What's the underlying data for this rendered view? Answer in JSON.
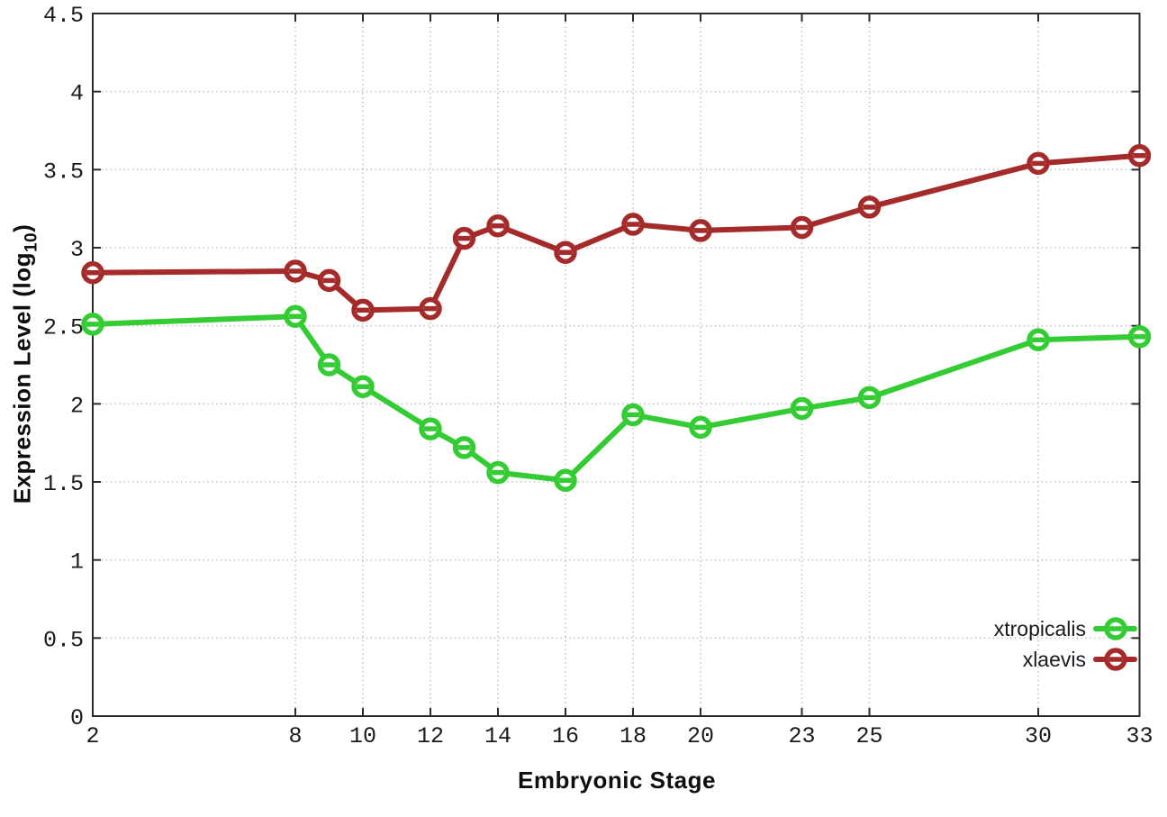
{
  "chart_data": {
    "type": "line",
    "title": "",
    "xlabel": "Embryonic Stage",
    "ylabel_prefix": "Expression Level (log",
    "ylabel_sub": "10",
    "ylabel_suffix": ")",
    "grid": true,
    "legend_position": "bottom-right-inside",
    "xlim": [
      2,
      33
    ],
    "ylim": [
      0,
      4.5
    ],
    "x": [
      2,
      8,
      9,
      10,
      12,
      13,
      14,
      16,
      18,
      20,
      23,
      25,
      30,
      33
    ],
    "x_ticks": [
      {
        "value": 2,
        "label": "2"
      },
      {
        "value": 8,
        "label": "8"
      },
      {
        "value": 10,
        "label": "10"
      },
      {
        "value": 12,
        "label": "12"
      },
      {
        "value": 14,
        "label": "14"
      },
      {
        "value": 16,
        "label": "16"
      },
      {
        "value": 18,
        "label": "18"
      },
      {
        "value": 20,
        "label": "20"
      },
      {
        "value": 23,
        "label": "23"
      },
      {
        "value": 25,
        "label": "25"
      },
      {
        "value": 30,
        "label": "30"
      },
      {
        "value": 33,
        "label": "33"
      }
    ],
    "y_ticks": [
      {
        "value": 0,
        "label": "0"
      },
      {
        "value": 0.5,
        "label": "0.5"
      },
      {
        "value": 1,
        "label": "1"
      },
      {
        "value": 1.5,
        "label": "1.5"
      },
      {
        "value": 2,
        "label": "2"
      },
      {
        "value": 2.5,
        "label": "2.5"
      },
      {
        "value": 3,
        "label": "3"
      },
      {
        "value": 3.5,
        "label": "3.5"
      },
      {
        "value": 4,
        "label": "4"
      },
      {
        "value": 4.5,
        "label": "4.5"
      }
    ],
    "series": [
      {
        "name": "xtropicalis",
        "color": "#33cc33",
        "values": [
          2.51,
          2.56,
          2.25,
          2.11,
          1.84,
          1.72,
          1.56,
          1.51,
          1.93,
          1.85,
          1.97,
          2.04,
          2.41,
          2.43
        ]
      },
      {
        "name": "xlaevis",
        "color": "#a52a2a",
        "values": [
          2.84,
          2.85,
          2.79,
          2.6,
          2.61,
          3.06,
          3.14,
          2.97,
          3.15,
          3.11,
          3.13,
          3.26,
          3.54,
          3.59
        ]
      }
    ],
    "colors": {
      "border": "#2b2b2b",
      "grid": "#bcbcbc",
      "tick_text": "#1a1a1a",
      "background": "#ffffff"
    }
  }
}
